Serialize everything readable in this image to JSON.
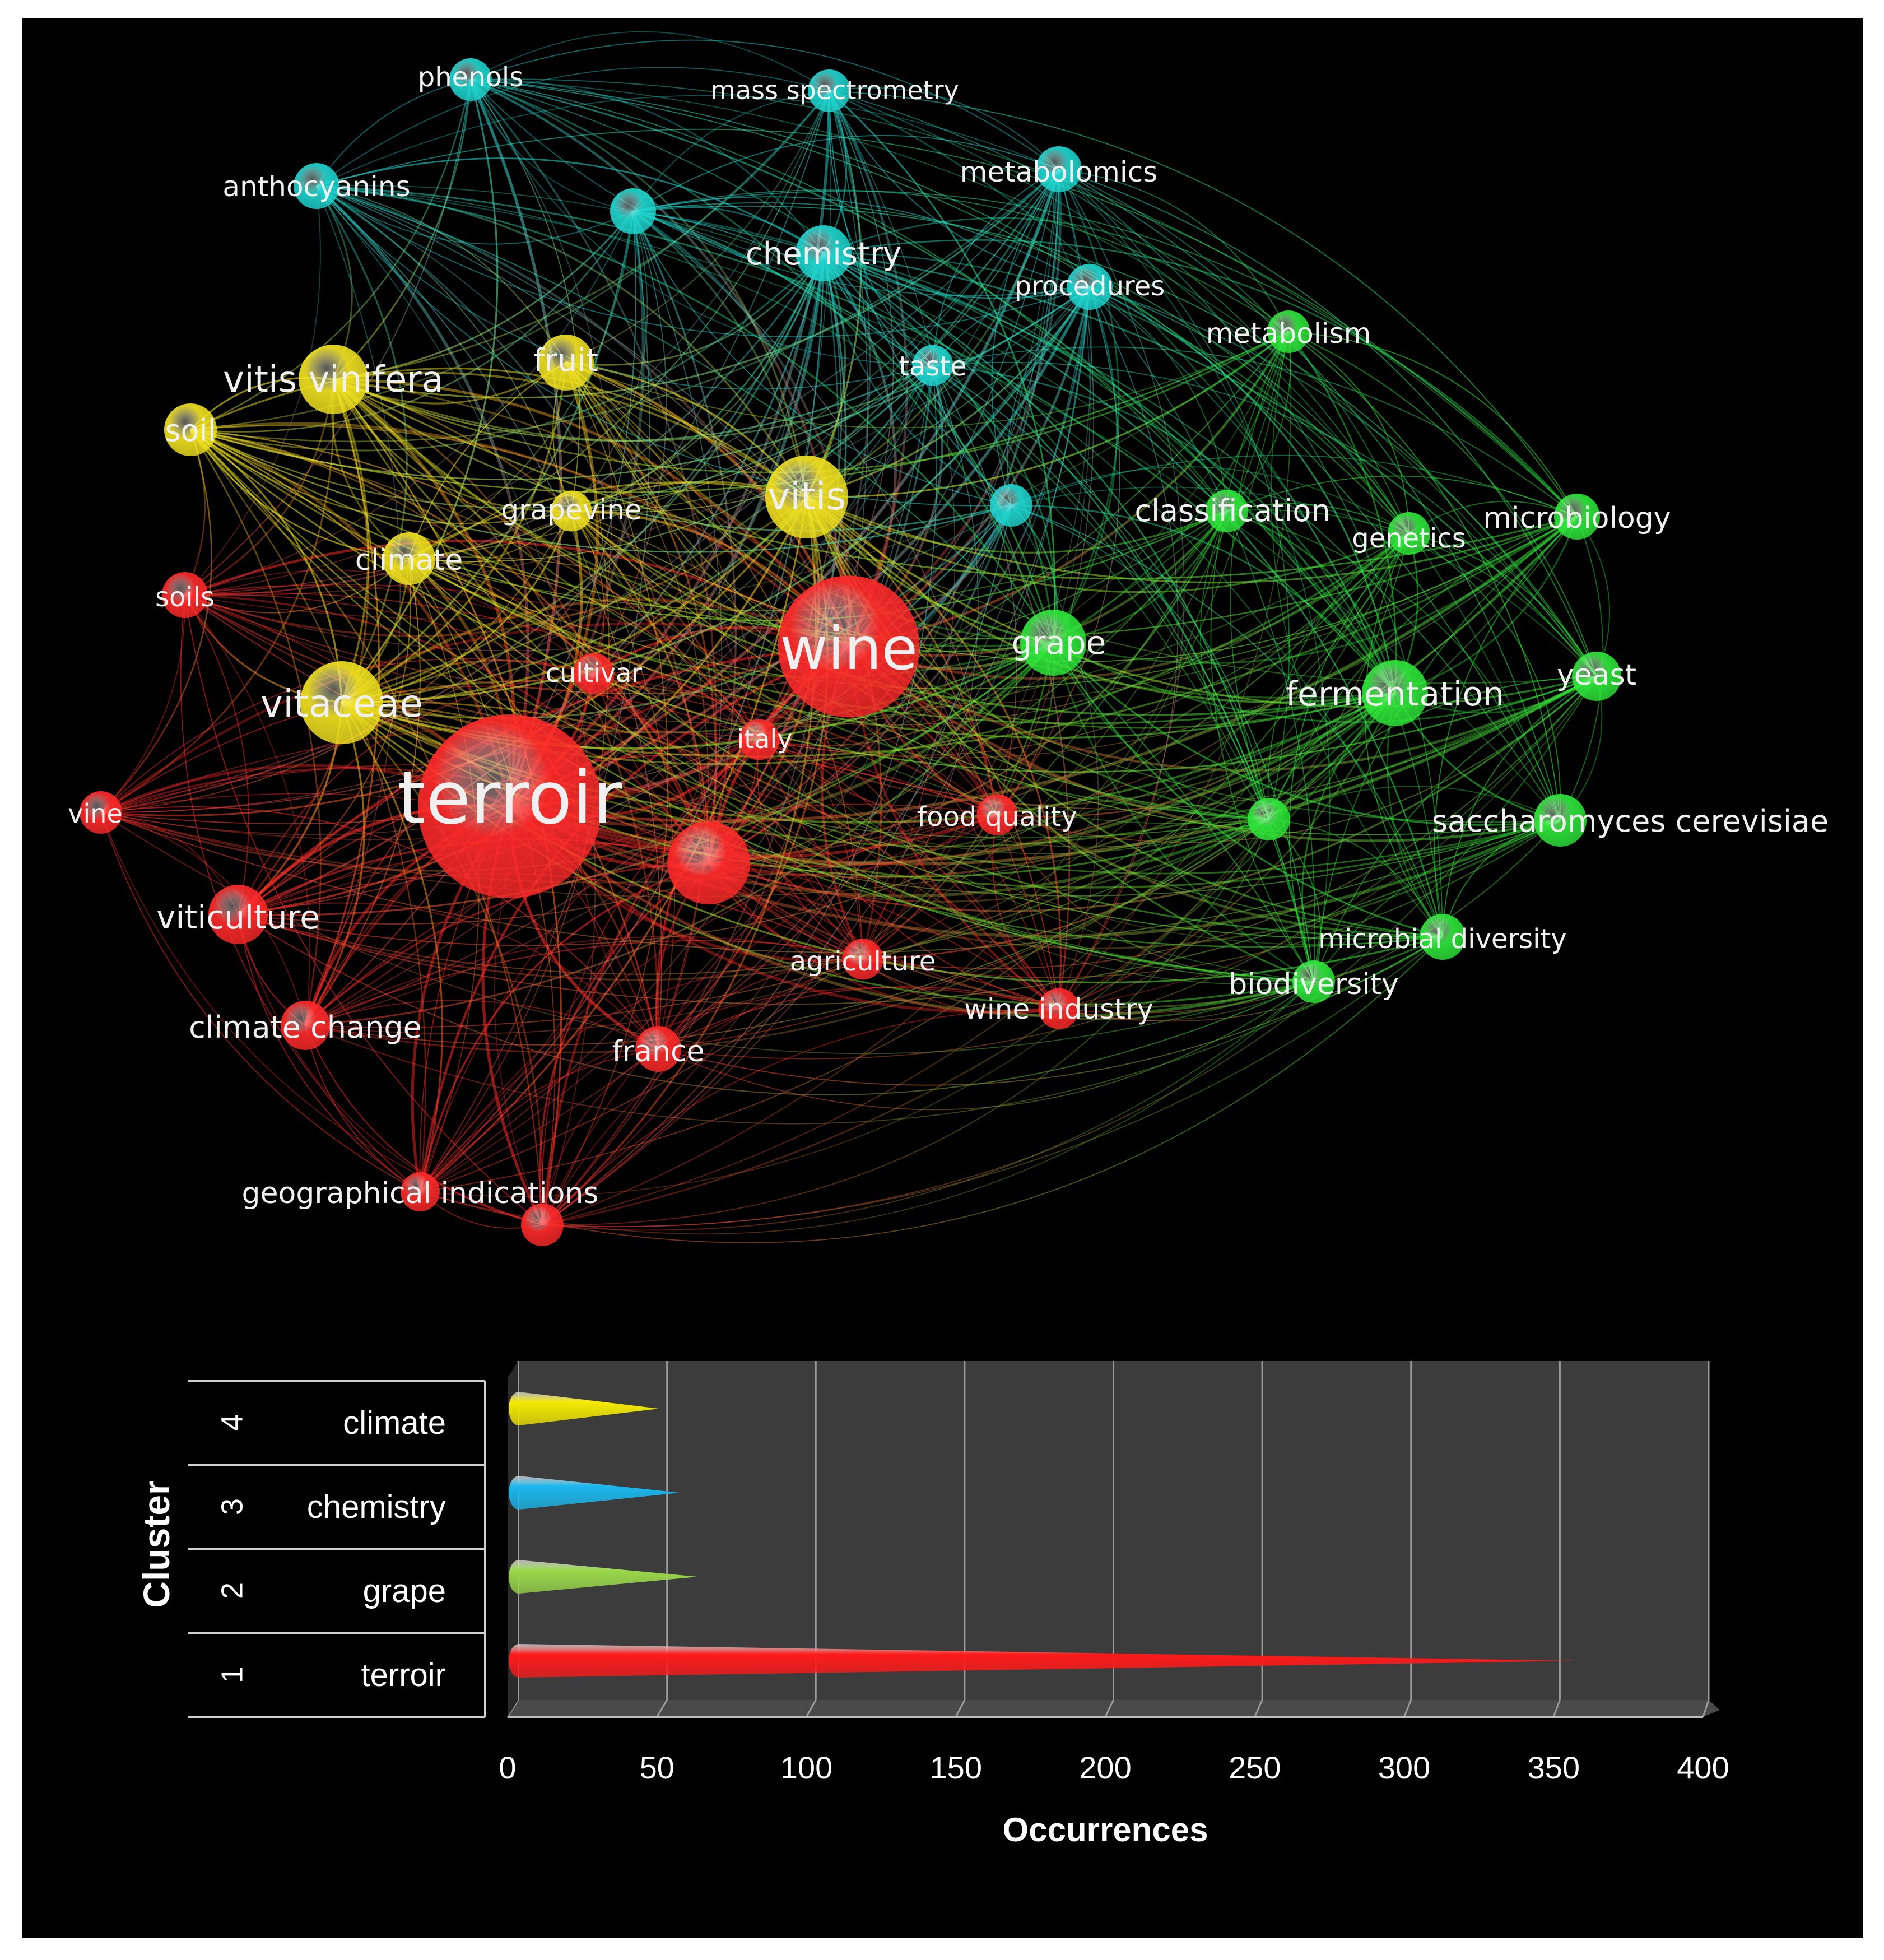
{
  "network": {
    "cluster_colors": {
      "red": "#ff2a2a",
      "green": "#2ee83a",
      "cyan": "#1fd6d0",
      "yellow": "#f2e320"
    },
    "nodes": [
      {
        "id": "terroir",
        "label": "terroir",
        "cluster": "red",
        "size": 10
      },
      {
        "id": "wine",
        "label": "wine",
        "cluster": "red",
        "size": 7.5
      },
      {
        "id": "unlabeled-red",
        "label": "",
        "cluster": "red",
        "size": 4
      },
      {
        "id": "italy",
        "label": "italy",
        "cluster": "red",
        "size": 1.5
      },
      {
        "id": "cultivar",
        "label": "cultivar",
        "cluster": "red",
        "size": 1.5
      },
      {
        "id": "food-quality",
        "label": "food quality",
        "cluster": "red",
        "size": 1.5
      },
      {
        "id": "agriculture",
        "label": "agriculture",
        "cluster": "red",
        "size": 1.5
      },
      {
        "id": "wine-industry",
        "label": "wine industry",
        "cluster": "red",
        "size": 1.5
      },
      {
        "id": "france",
        "label": "france",
        "cluster": "red",
        "size": 1.8
      },
      {
        "id": "viticulture",
        "label": "viticulture",
        "cluster": "red",
        "size": 2.6
      },
      {
        "id": "climate-change",
        "label": "climate change",
        "cluster": "red",
        "size": 2
      },
      {
        "id": "vine",
        "label": "vine",
        "cluster": "red",
        "size": 1.6
      },
      {
        "id": "soils",
        "label": "soils",
        "cluster": "red",
        "size": 1.8
      },
      {
        "id": "geographical-indications",
        "label": "geographical indications",
        "cluster": "red",
        "size": 1.4
      },
      {
        "id": "unlabeled-red-2",
        "label": "",
        "cluster": "red",
        "size": 1.6
      },
      {
        "id": "vitaceae",
        "label": "vitaceae",
        "cluster": "yellow",
        "size": 4
      },
      {
        "id": "vitis",
        "label": "vitis",
        "cluster": "yellow",
        "size": 4
      },
      {
        "id": "vitis-vinifera",
        "label": "vitis vinifera",
        "cluster": "yellow",
        "size": 3.2
      },
      {
        "id": "fruit",
        "label": "fruit",
        "cluster": "yellow",
        "size": 2.4
      },
      {
        "id": "soil",
        "label": "soil",
        "cluster": "yellow",
        "size": 2.2
      },
      {
        "id": "climate",
        "label": "climate",
        "cluster": "yellow",
        "size": 2.2
      },
      {
        "id": "grapevine",
        "label": "grapevine",
        "cluster": "yellow",
        "size": 1.5
      },
      {
        "id": "grape",
        "label": "grape",
        "cluster": "green",
        "size": 3
      },
      {
        "id": "fermentation",
        "label": "fermentation",
        "cluster": "green",
        "size": 3
      },
      {
        "id": "saccharomyces-cerevisiae",
        "label": "saccharomyces cerevisiae",
        "cluster": "green",
        "size": 2.2
      },
      {
        "id": "yeast",
        "label": "yeast",
        "cluster": "green",
        "size": 2
      },
      {
        "id": "microbiology",
        "label": "microbiology",
        "cluster": "green",
        "size": 1.8
      },
      {
        "id": "genetics",
        "label": "genetics",
        "cluster": "green",
        "size": 1.6
      },
      {
        "id": "classification",
        "label": "classification",
        "cluster": "green",
        "size": 1.6
      },
      {
        "id": "metabolism",
        "label": "metabolism",
        "cluster": "green",
        "size": 1.6
      },
      {
        "id": "microbial-diversity",
        "label": "microbial diversity",
        "cluster": "green",
        "size": 1.8
      },
      {
        "id": "biodiversity",
        "label": "biodiversity",
        "cluster": "green",
        "size": 1.6
      },
      {
        "id": "unlabeled-green",
        "label": "",
        "cluster": "green",
        "size": 1.6
      },
      {
        "id": "chemistry",
        "label": "chemistry",
        "cluster": "cyan",
        "size": 2.4
      },
      {
        "id": "metabolomics",
        "label": "metabolomics",
        "cluster": "cyan",
        "size": 1.8
      },
      {
        "id": "mass-spectrometry",
        "label": "mass spectrometry",
        "cluster": "cyan",
        "size": 1.6
      },
      {
        "id": "phenols",
        "label": "phenols",
        "cluster": "cyan",
        "size": 1.6
      },
      {
        "id": "anthocyanins",
        "label": "anthocyanins",
        "cluster": "cyan",
        "size": 1.8
      },
      {
        "id": "procedures",
        "label": "procedures",
        "cluster": "cyan",
        "size": 1.8
      },
      {
        "id": "taste",
        "label": "taste",
        "cluster": "cyan",
        "size": 1.5
      },
      {
        "id": "unlabeled-cyan",
        "label": "",
        "cluster": "cyan",
        "size": 1.8
      },
      {
        "id": "unlabeled-cyan-2",
        "label": "",
        "cluster": "cyan",
        "size": 1.6
      }
    ]
  },
  "chart_data": {
    "type": "bar",
    "ylabel": "Cluster",
    "xlabel": "Occurrences",
    "xlim": [
      0,
      400
    ],
    "xticks": [
      0,
      50,
      100,
      150,
      200,
      250,
      300,
      350,
      400
    ],
    "rows": [
      {
        "number": "4",
        "name": "climate",
        "value": 48,
        "color": "#f5ea00"
      },
      {
        "number": "3",
        "name": "chemistry",
        "value": 55,
        "color": "#1ab8ee"
      },
      {
        "number": "2",
        "name": "grape",
        "value": 61,
        "color": "#9ad84a"
      },
      {
        "number": "1",
        "name": "terroir",
        "value": 355,
        "color": "#ff1a1a"
      }
    ]
  }
}
